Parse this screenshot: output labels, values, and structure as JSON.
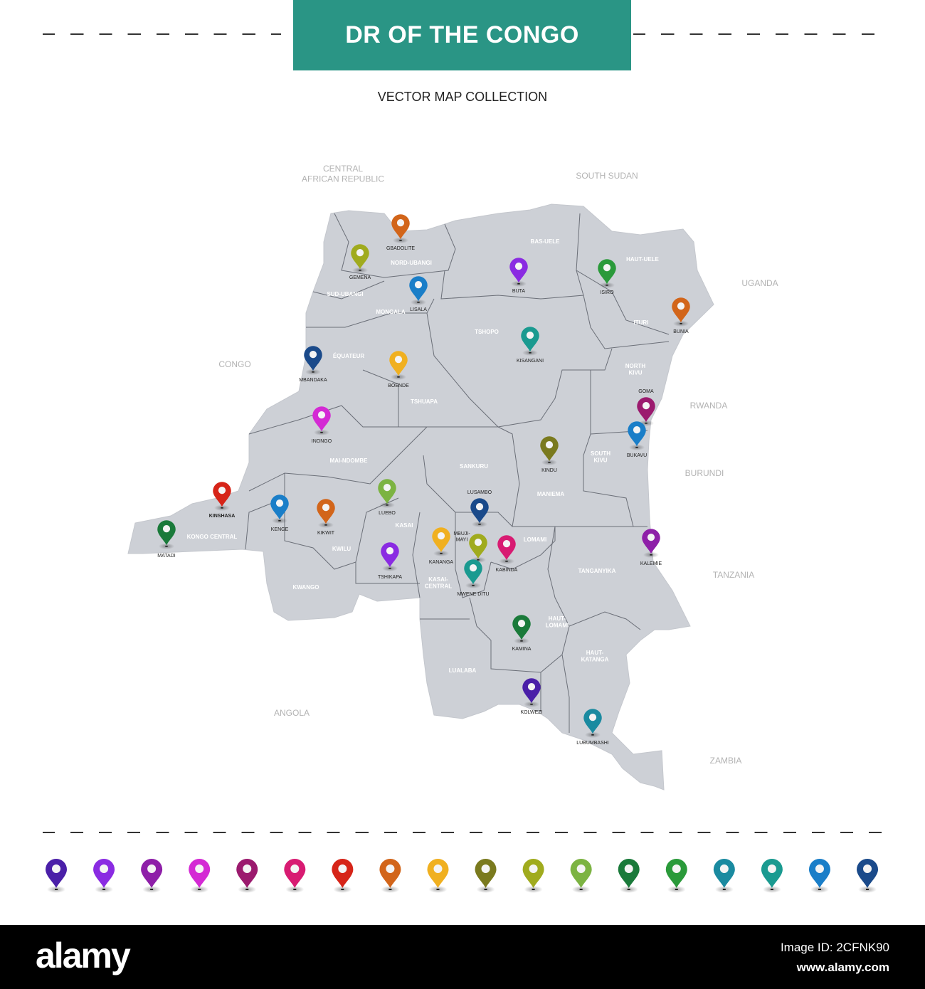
{
  "header": {
    "title": "DR OF THE CONGO",
    "subtitle": "VECTOR MAP COLLECTION"
  },
  "colors": {
    "title_bg": "#2a9585",
    "land": "#cdd0d6",
    "border": "#6b6f78",
    "region_label": "#ffffff",
    "country_label": "#b3b3b3"
  },
  "countries": [
    "CENTRAL AFRICAN REPUBLIC",
    "SOUTH SUDAN",
    "UGANDA",
    "CONGO",
    "RWANDA",
    "BURUNDI",
    "TANZANIA",
    "ANGOLA",
    "ZAMBIA"
  ],
  "regions": [
    "BAS-UELE",
    "HAUT-UELE",
    "NORD-UBANGI",
    "SUD-UBANGI",
    "MONGALA",
    "TSHOPO",
    "ITURI",
    "ÉQUATEUR",
    "NORTH KIVU",
    "TSHUAPA",
    "SOUTH KIVU",
    "MAI-NDOMBE",
    "SANKURU",
    "MANIEMA",
    "KASAI",
    "LOMAMI",
    "KONGO CENTRAL",
    "KWILU",
    "TANGANYIKA",
    "KASAI-CENTRAL",
    "KWANGO",
    "HAUT-LOMAMI",
    "HAUT-KATANGA",
    "LUALABA"
  ],
  "cities": [
    {
      "name": "GBADOLITE",
      "color": "#d2651a"
    },
    {
      "name": "GEMENA",
      "color": "#a0ab1e"
    },
    {
      "name": "LISALA",
      "color": "#1a7ec8"
    },
    {
      "name": "BUTA",
      "color": "#8a2be2"
    },
    {
      "name": "ISIRO",
      "color": "#2a9a3a"
    },
    {
      "name": "BUNIA",
      "color": "#d2651a"
    },
    {
      "name": "KISANGANI",
      "color": "#1a9a90"
    },
    {
      "name": "MBANDAKA",
      "color": "#1a4a8a"
    },
    {
      "name": "BOENDE",
      "color": "#f0b020"
    },
    {
      "name": "GOMA",
      "color": "#9b1a6e"
    },
    {
      "name": "BUKAVU",
      "color": "#1a7ec8"
    },
    {
      "name": "INONGO",
      "color": "#d42ad4"
    },
    {
      "name": "KINDU",
      "color": "#7a7a1e"
    },
    {
      "name": "KINSHASA",
      "color": "#d62418"
    },
    {
      "name": "LUEBO",
      "color": "#7cb342"
    },
    {
      "name": "LUSAMBO",
      "color": "#1a4a8a"
    },
    {
      "name": "KENGE",
      "color": "#1a7ec8"
    },
    {
      "name": "KIKWIT",
      "color": "#d2651a"
    },
    {
      "name": "MATADI",
      "color": "#1a7a3a"
    },
    {
      "name": "KANANGA",
      "color": "#f0b020"
    },
    {
      "name": "MBUJI-MAYI",
      "color": "#a0ab1e"
    },
    {
      "name": "KABINDA",
      "color": "#d81b72"
    },
    {
      "name": "TSHIKAPA",
      "color": "#8a2be2"
    },
    {
      "name": "MWENE DITU",
      "color": "#1a9a90"
    },
    {
      "name": "KALEMIE",
      "color": "#8e1fa8"
    },
    {
      "name": "KAMINA",
      "color": "#1a7a3a"
    },
    {
      "name": "KOLWEZI",
      "color": "#4a1fa8"
    },
    {
      "name": "LUBUMBASHI",
      "color": "#1a8aa0"
    }
  ],
  "legend_pins": [
    "#4a1fa8",
    "#8a2be2",
    "#8e1fa8",
    "#d42ad4",
    "#9b1a6e",
    "#d81b72",
    "#d62418",
    "#d2651a",
    "#f0b020",
    "#7a7a1e",
    "#a0ab1e",
    "#7cb342",
    "#1a7a3a",
    "#2a9a3a",
    "#1a8aa0",
    "#1a9a90",
    "#1a7ec8",
    "#1a4a8a"
  ],
  "footer": {
    "logo": "alamy",
    "image_id": "Image ID: 2CFNK90",
    "url": "www.alamy.com"
  }
}
